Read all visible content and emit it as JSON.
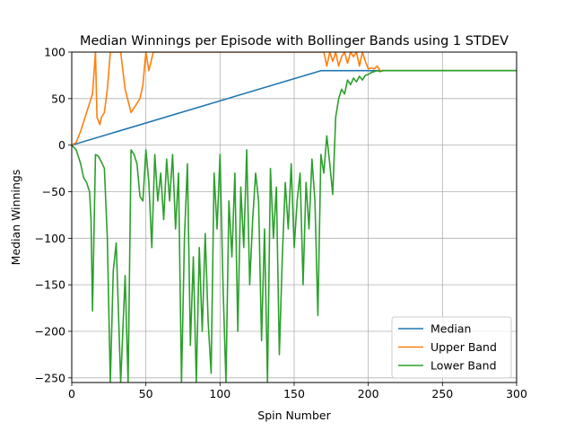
{
  "chart_data": {
    "type": "line",
    "title": "Median Winnings per Episode with Bollinger Bands using 1 STDEV",
    "xlabel": "Spin Number",
    "ylabel": "Median Winnings",
    "xlim": [
      0,
      300
    ],
    "ylim": [
      -255,
      100
    ],
    "xticks": [
      0,
      50,
      100,
      150,
      200,
      250,
      300
    ],
    "yticks": [
      -250,
      -200,
      -150,
      -100,
      -50,
      0,
      50,
      100
    ],
    "grid": true,
    "legend_position": "lower-right",
    "series": [
      {
        "name": "Median",
        "color": "#1f77b4",
        "x": [
          0,
          168,
          300
        ],
        "y": [
          0,
          80,
          80
        ]
      },
      {
        "name": "Upper Band",
        "color": "#ff7f0e",
        "x": [
          0,
          3,
          6,
          9,
          12,
          14,
          16,
          17,
          19,
          20,
          22,
          24,
          26,
          28,
          30,
          33,
          36,
          40,
          42,
          44,
          46,
          48,
          50,
          52,
          55,
          58,
          60,
          62,
          64,
          66,
          68,
          70,
          72,
          74,
          76,
          78,
          80,
          82,
          84,
          86,
          88,
          90,
          92,
          95,
          98,
          100,
          103,
          106,
          108,
          110,
          113,
          116,
          119,
          122,
          125,
          128,
          131,
          134,
          137,
          140,
          143,
          146,
          149,
          152,
          155,
          158,
          161,
          164,
          167,
          170,
          172,
          174,
          176,
          178,
          180,
          182,
          184,
          186,
          188,
          190,
          192,
          194,
          196,
          198,
          200,
          202,
          204,
          206,
          208,
          210,
          300
        ],
        "y": [
          0,
          3,
          15,
          30,
          45,
          55,
          100,
          30,
          22,
          30,
          35,
          60,
          100,
          100,
          100,
          100,
          60,
          35,
          40,
          45,
          50,
          65,
          100,
          80,
          100,
          100,
          100,
          100,
          100,
          100,
          100,
          100,
          100,
          100,
          100,
          100,
          100,
          100,
          100,
          100,
          100,
          100,
          100,
          100,
          100,
          100,
          100,
          100,
          100,
          100,
          100,
          100,
          100,
          100,
          100,
          100,
          100,
          100,
          100,
          100,
          100,
          100,
          100,
          100,
          100,
          100,
          100,
          100,
          100,
          100,
          85,
          100,
          90,
          100,
          85,
          95,
          100,
          88,
          100,
          95,
          100,
          85,
          100,
          90,
          82,
          83,
          82,
          85,
          80,
          80,
          80
        ]
      },
      {
        "name": "Lower Band",
        "color": "#2ca02c",
        "x": [
          0,
          3,
          6,
          8,
          10,
          12,
          13,
          14,
          16,
          18,
          20,
          22,
          24,
          26,
          28,
          30,
          33,
          36,
          38,
          40,
          42,
          44,
          46,
          48,
          50,
          52,
          54,
          56,
          58,
          60,
          62,
          64,
          66,
          68,
          70,
          72,
          74,
          76,
          78,
          80,
          82,
          84,
          86,
          88,
          90,
          92,
          94,
          96,
          98,
          100,
          102,
          104,
          106,
          108,
          110,
          112,
          114,
          116,
          118,
          120,
          122,
          124,
          126,
          128,
          130,
          132,
          134,
          136,
          138,
          140,
          142,
          144,
          146,
          148,
          150,
          152,
          154,
          156,
          158,
          160,
          162,
          164,
          166,
          168,
          170,
          172,
          174,
          176,
          178,
          180,
          182,
          184,
          186,
          188,
          190,
          192,
          194,
          196,
          198,
          200,
          202,
          204,
          206,
          208,
          210,
          300
        ],
        "y": [
          0,
          -5,
          -20,
          -35,
          -40,
          -50,
          -80,
          -178,
          -10,
          -12,
          -18,
          -25,
          -100,
          -255,
          -135,
          -105,
          -255,
          -140,
          -255,
          -5,
          -10,
          -20,
          -55,
          -60,
          -5,
          -40,
          -110,
          -10,
          -60,
          -30,
          -80,
          -15,
          -60,
          -10,
          -90,
          -30,
          -255,
          -100,
          -20,
          -215,
          -120,
          -255,
          -110,
          -200,
          -95,
          -190,
          -245,
          -30,
          -90,
          -10,
          -150,
          -255,
          -60,
          -120,
          -30,
          -200,
          -45,
          -110,
          -5,
          -150,
          -80,
          -30,
          -60,
          -210,
          -90,
          -255,
          -25,
          -100,
          -45,
          -225,
          -120,
          -40,
          -90,
          -20,
          -110,
          -60,
          -30,
          -150,
          -40,
          -90,
          -15,
          -60,
          -183,
          -10,
          -30,
          10,
          -20,
          -53,
          30,
          50,
          60,
          55,
          70,
          65,
          72,
          68,
          74,
          70,
          75,
          76,
          78,
          79,
          80,
          79,
          80,
          80
        ]
      }
    ]
  }
}
